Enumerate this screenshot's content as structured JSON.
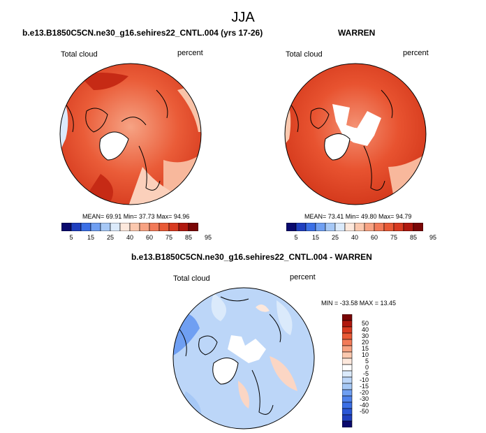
{
  "figure": {
    "title": "JJA",
    "panels": [
      {
        "id": "model",
        "title": "b.e13.B1850C5CN.ne30_g16.sehires22_CNTL.004 (yrs 17-26)",
        "left_label": "Total cloud",
        "right_label": "percent",
        "stats": "MEAN=  69.91  Min=  37.73  Max=  94.96"
      },
      {
        "id": "obs",
        "title": "WARREN",
        "left_label": "Total cloud",
        "right_label": "percent",
        "stats": "MEAN=  73.41  Min=  49.80  Max=  94.79"
      },
      {
        "id": "diff",
        "title": "b.e13.B1850C5CN.ne30_g16.sehires22_CNTL.004 - WARREN",
        "left_label": "Total cloud",
        "right_label": "percent",
        "stats": "MIN = -33.58 MAX =  13.45"
      }
    ],
    "colorbar_horizontal": {
      "colors": [
        "#0a0a6e",
        "#1f3fbf",
        "#3b6fe6",
        "#6f9ff2",
        "#a6c8f6",
        "#dbeafb",
        "#fde8dc",
        "#fbc8ae",
        "#f7a282",
        "#f27a58",
        "#e95a36",
        "#d83a20",
        "#b0180e",
        "#7a0606"
      ],
      "labels": [
        "5",
        "15",
        "25",
        "40",
        "60",
        "75",
        "85",
        "95"
      ]
    },
    "colorbar_vertical": {
      "colors": [
        "#7a0606",
        "#b0180e",
        "#d83a20",
        "#e95a36",
        "#f27a58",
        "#f7a282",
        "#fbc8ae",
        "#fde8dc",
        "#ffffff",
        "#dbeafb",
        "#bcd6f8",
        "#a6c8f6",
        "#6f9ff2",
        "#4f82ec",
        "#3b6fe6",
        "#2a56d6",
        "#1f3fbf",
        "#0a0a6e"
      ],
      "labels": [
        "50",
        "40",
        "30",
        "20",
        "15",
        "10",
        "5",
        "0",
        "-5",
        "-10",
        "-15",
        "-20",
        "-30",
        "-40",
        "-50"
      ]
    }
  }
}
